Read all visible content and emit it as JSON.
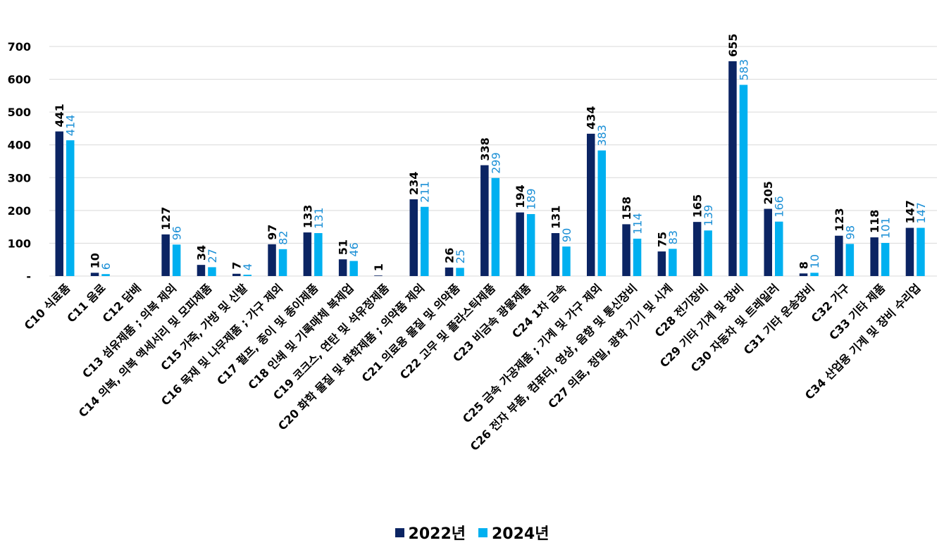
{
  "colors": {
    "series1": "#0b2463",
    "series2": "#00b0f0",
    "label2": "#1a8fd6",
    "grid": "#d9d9d9",
    "text": "#000000"
  },
  "chart_data": {
    "type": "bar",
    "title": "",
    "xlabel": "",
    "ylabel": "",
    "ylim": [
      0,
      700
    ],
    "yticks": [
      0,
      100,
      200,
      300,
      400,
      500,
      600,
      700
    ],
    "ytick_labels": [
      "-",
      "100",
      "200",
      "300",
      "400",
      "500",
      "600",
      "700"
    ],
    "grid": true,
    "legend_position": "bottom-center",
    "categories": [
      "C10 식료품",
      "C11 음료",
      "C12 담배",
      "C13 섬유제품 ; 의복 제외",
      "C14 의복, 의복 액세서리 및 모피제품",
      "C15 가죽, 가방 및 신발",
      "C16 목재 및 나무제품 ; 가구 제외",
      "C17 펄프, 종이 및 종이제품",
      "C18 인쇄 및 기록매체 복제업",
      "C19 코크스, 연탄 및 석유정제품",
      "C20 화학 물질 및 화학제품 ; 의약품 제외",
      "C21 의료용 물질 및 의약품",
      "C22 고무 및 플라스틱제품",
      "C23 비금속 광물제품",
      "C24 1차 금속",
      "C25 금속 가공제품 ; 기계 및 가구 제외",
      "C26 전자 부품, 컴퓨터, 영상, 음향 및 통신장비",
      "C27 의료, 정밀, 광학 기기 및 시계",
      "C28 전기장비",
      "C29 기타 기계 및 장비",
      "C30 자동차 및 트레일러",
      "C31 기타 운송장비",
      "C32 가구",
      "C33 기타 제품",
      "C34 산업용 기계 및 장비 수리업"
    ],
    "series": [
      {
        "name": "2022년",
        "values": [
          441,
          10,
          null,
          127,
          34,
          7,
          97,
          133,
          51,
          1,
          234,
          26,
          338,
          194,
          131,
          434,
          158,
          75,
          165,
          655,
          205,
          8,
          123,
          118,
          147
        ]
      },
      {
        "name": "2024년",
        "values": [
          414,
          6,
          null,
          96,
          27,
          4,
          82,
          131,
          46,
          null,
          211,
          25,
          299,
          189,
          90,
          383,
          114,
          83,
          139,
          583,
          166,
          10,
          98,
          101,
          147
        ]
      }
    ]
  }
}
